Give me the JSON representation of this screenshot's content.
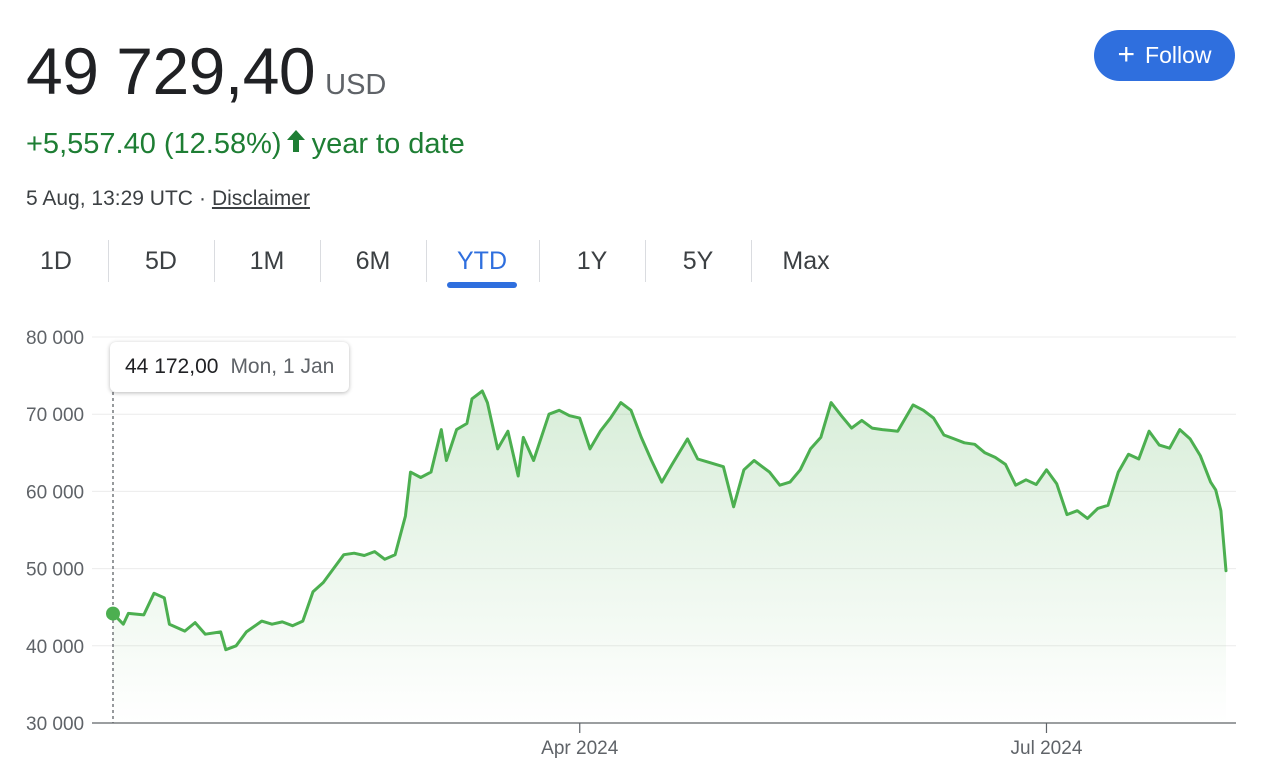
{
  "header": {
    "price": "49 729,40",
    "currency": "USD",
    "change_text": "+5,557.40 (12.58%)",
    "change_period": "year to date",
    "timestamp": "5 Aug, 13:29 UTC",
    "disclaimer": "Disclaimer",
    "follow_label": "Follow"
  },
  "tabs": [
    {
      "label": "1D"
    },
    {
      "label": "5D"
    },
    {
      "label": "1M"
    },
    {
      "label": "6M"
    },
    {
      "label": "YTD",
      "active": true
    },
    {
      "label": "1Y"
    },
    {
      "label": "5Y"
    },
    {
      "label": "Max"
    }
  ],
  "tooltip": {
    "value": "44 172,00",
    "date": "Mon, 1 Jan"
  },
  "colors": {
    "line": "#4caf50",
    "positive": "#1e7e34",
    "accent": "#2f6fde"
  },
  "chart_data": {
    "type": "area",
    "ylim": [
      30000,
      80000
    ],
    "y_ticks": [
      "30 000",
      "40 000",
      "50 000",
      "60 000",
      "70 000",
      "80 000"
    ],
    "x_ticks": [
      {
        "label": "Apr 2024",
        "date": "2024-04-01"
      },
      {
        "label": "Jul 2024",
        "date": "2024-07-01"
      }
    ],
    "x_range": [
      "2024-01-01",
      "2024-08-05"
    ],
    "grid": true,
    "series": [
      {
        "points": [
          [
            "2024-01-01",
            44172
          ],
          [
            "2024-01-03",
            42800
          ],
          [
            "2024-01-04",
            44200
          ],
          [
            "2024-01-07",
            44000
          ],
          [
            "2024-01-09",
            46800
          ],
          [
            "2024-01-11",
            46200
          ],
          [
            "2024-01-12",
            42800
          ],
          [
            "2024-01-15",
            41900
          ],
          [
            "2024-01-17",
            43000
          ],
          [
            "2024-01-19",
            41500
          ],
          [
            "2024-01-22",
            41800
          ],
          [
            "2024-01-23",
            39500
          ],
          [
            "2024-01-25",
            40000
          ],
          [
            "2024-01-27",
            41800
          ],
          [
            "2024-01-30",
            43200
          ],
          [
            "2024-02-01",
            42800
          ],
          [
            "2024-02-03",
            43100
          ],
          [
            "2024-02-05",
            42600
          ],
          [
            "2024-02-07",
            43200
          ],
          [
            "2024-02-09",
            47000
          ],
          [
            "2024-02-11",
            48200
          ],
          [
            "2024-02-13",
            50000
          ],
          [
            "2024-02-15",
            51800
          ],
          [
            "2024-02-17",
            52000
          ],
          [
            "2024-02-19",
            51700
          ],
          [
            "2024-02-21",
            52200
          ],
          [
            "2024-02-23",
            51200
          ],
          [
            "2024-02-25",
            51800
          ],
          [
            "2024-02-27",
            56800
          ],
          [
            "2024-02-28",
            62500
          ],
          [
            "2024-03-01",
            61800
          ],
          [
            "2024-03-03",
            62500
          ],
          [
            "2024-03-05",
            68000
          ],
          [
            "2024-03-06",
            64000
          ],
          [
            "2024-03-08",
            68000
          ],
          [
            "2024-03-10",
            68800
          ],
          [
            "2024-03-11",
            72000
          ],
          [
            "2024-03-13",
            73000
          ],
          [
            "2024-03-14",
            71500
          ],
          [
            "2024-03-16",
            65500
          ],
          [
            "2024-03-18",
            67800
          ],
          [
            "2024-03-20",
            62000
          ],
          [
            "2024-03-21",
            67000
          ],
          [
            "2024-03-23",
            64000
          ],
          [
            "2024-03-26",
            70000
          ],
          [
            "2024-03-28",
            70500
          ],
          [
            "2024-03-30",
            69800
          ],
          [
            "2024-04-01",
            69500
          ],
          [
            "2024-04-03",
            65500
          ],
          [
            "2024-04-05",
            67800
          ],
          [
            "2024-04-07",
            69500
          ],
          [
            "2024-04-09",
            71500
          ],
          [
            "2024-04-11",
            70500
          ],
          [
            "2024-04-13",
            67000
          ],
          [
            "2024-04-15",
            64000
          ],
          [
            "2024-04-17",
            61200
          ],
          [
            "2024-04-19",
            63500
          ],
          [
            "2024-04-22",
            66800
          ],
          [
            "2024-04-24",
            64200
          ],
          [
            "2024-04-26",
            63800
          ],
          [
            "2024-04-29",
            63200
          ],
          [
            "2024-05-01",
            58000
          ],
          [
            "2024-05-03",
            62800
          ],
          [
            "2024-05-05",
            64000
          ],
          [
            "2024-05-08",
            62500
          ],
          [
            "2024-05-10",
            60800
          ],
          [
            "2024-05-12",
            61200
          ],
          [
            "2024-05-14",
            62800
          ],
          [
            "2024-05-16",
            65500
          ],
          [
            "2024-05-18",
            67000
          ],
          [
            "2024-05-20",
            71500
          ],
          [
            "2024-05-22",
            69800
          ],
          [
            "2024-05-24",
            68200
          ],
          [
            "2024-05-26",
            69200
          ],
          [
            "2024-05-28",
            68200
          ],
          [
            "2024-05-30",
            68000
          ],
          [
            "2024-06-02",
            67800
          ],
          [
            "2024-06-05",
            71200
          ],
          [
            "2024-06-07",
            70500
          ],
          [
            "2024-06-09",
            69500
          ],
          [
            "2024-06-11",
            67300
          ],
          [
            "2024-06-13",
            66800
          ],
          [
            "2024-06-15",
            66300
          ],
          [
            "2024-06-17",
            66100
          ],
          [
            "2024-06-19",
            65000
          ],
          [
            "2024-06-21",
            64400
          ],
          [
            "2024-06-23",
            63500
          ],
          [
            "2024-06-25",
            60800
          ],
          [
            "2024-06-27",
            61500
          ],
          [
            "2024-06-29",
            60900
          ],
          [
            "2024-07-01",
            62800
          ],
          [
            "2024-07-03",
            61000
          ],
          [
            "2024-07-05",
            57000
          ],
          [
            "2024-07-07",
            57500
          ],
          [
            "2024-07-09",
            56500
          ],
          [
            "2024-07-11",
            57800
          ],
          [
            "2024-07-13",
            58200
          ],
          [
            "2024-07-15",
            62500
          ],
          [
            "2024-07-17",
            64800
          ],
          [
            "2024-07-19",
            64200
          ],
          [
            "2024-07-21",
            67800
          ],
          [
            "2024-07-23",
            66000
          ],
          [
            "2024-07-25",
            65600
          ],
          [
            "2024-07-27",
            68000
          ],
          [
            "2024-07-29",
            66800
          ],
          [
            "2024-07-31",
            64600
          ],
          [
            "2024-08-02",
            61200
          ],
          [
            "2024-08-03",
            60200
          ],
          [
            "2024-08-04",
            57500
          ],
          [
            "2024-08-05",
            49729
          ]
        ]
      }
    ]
  }
}
